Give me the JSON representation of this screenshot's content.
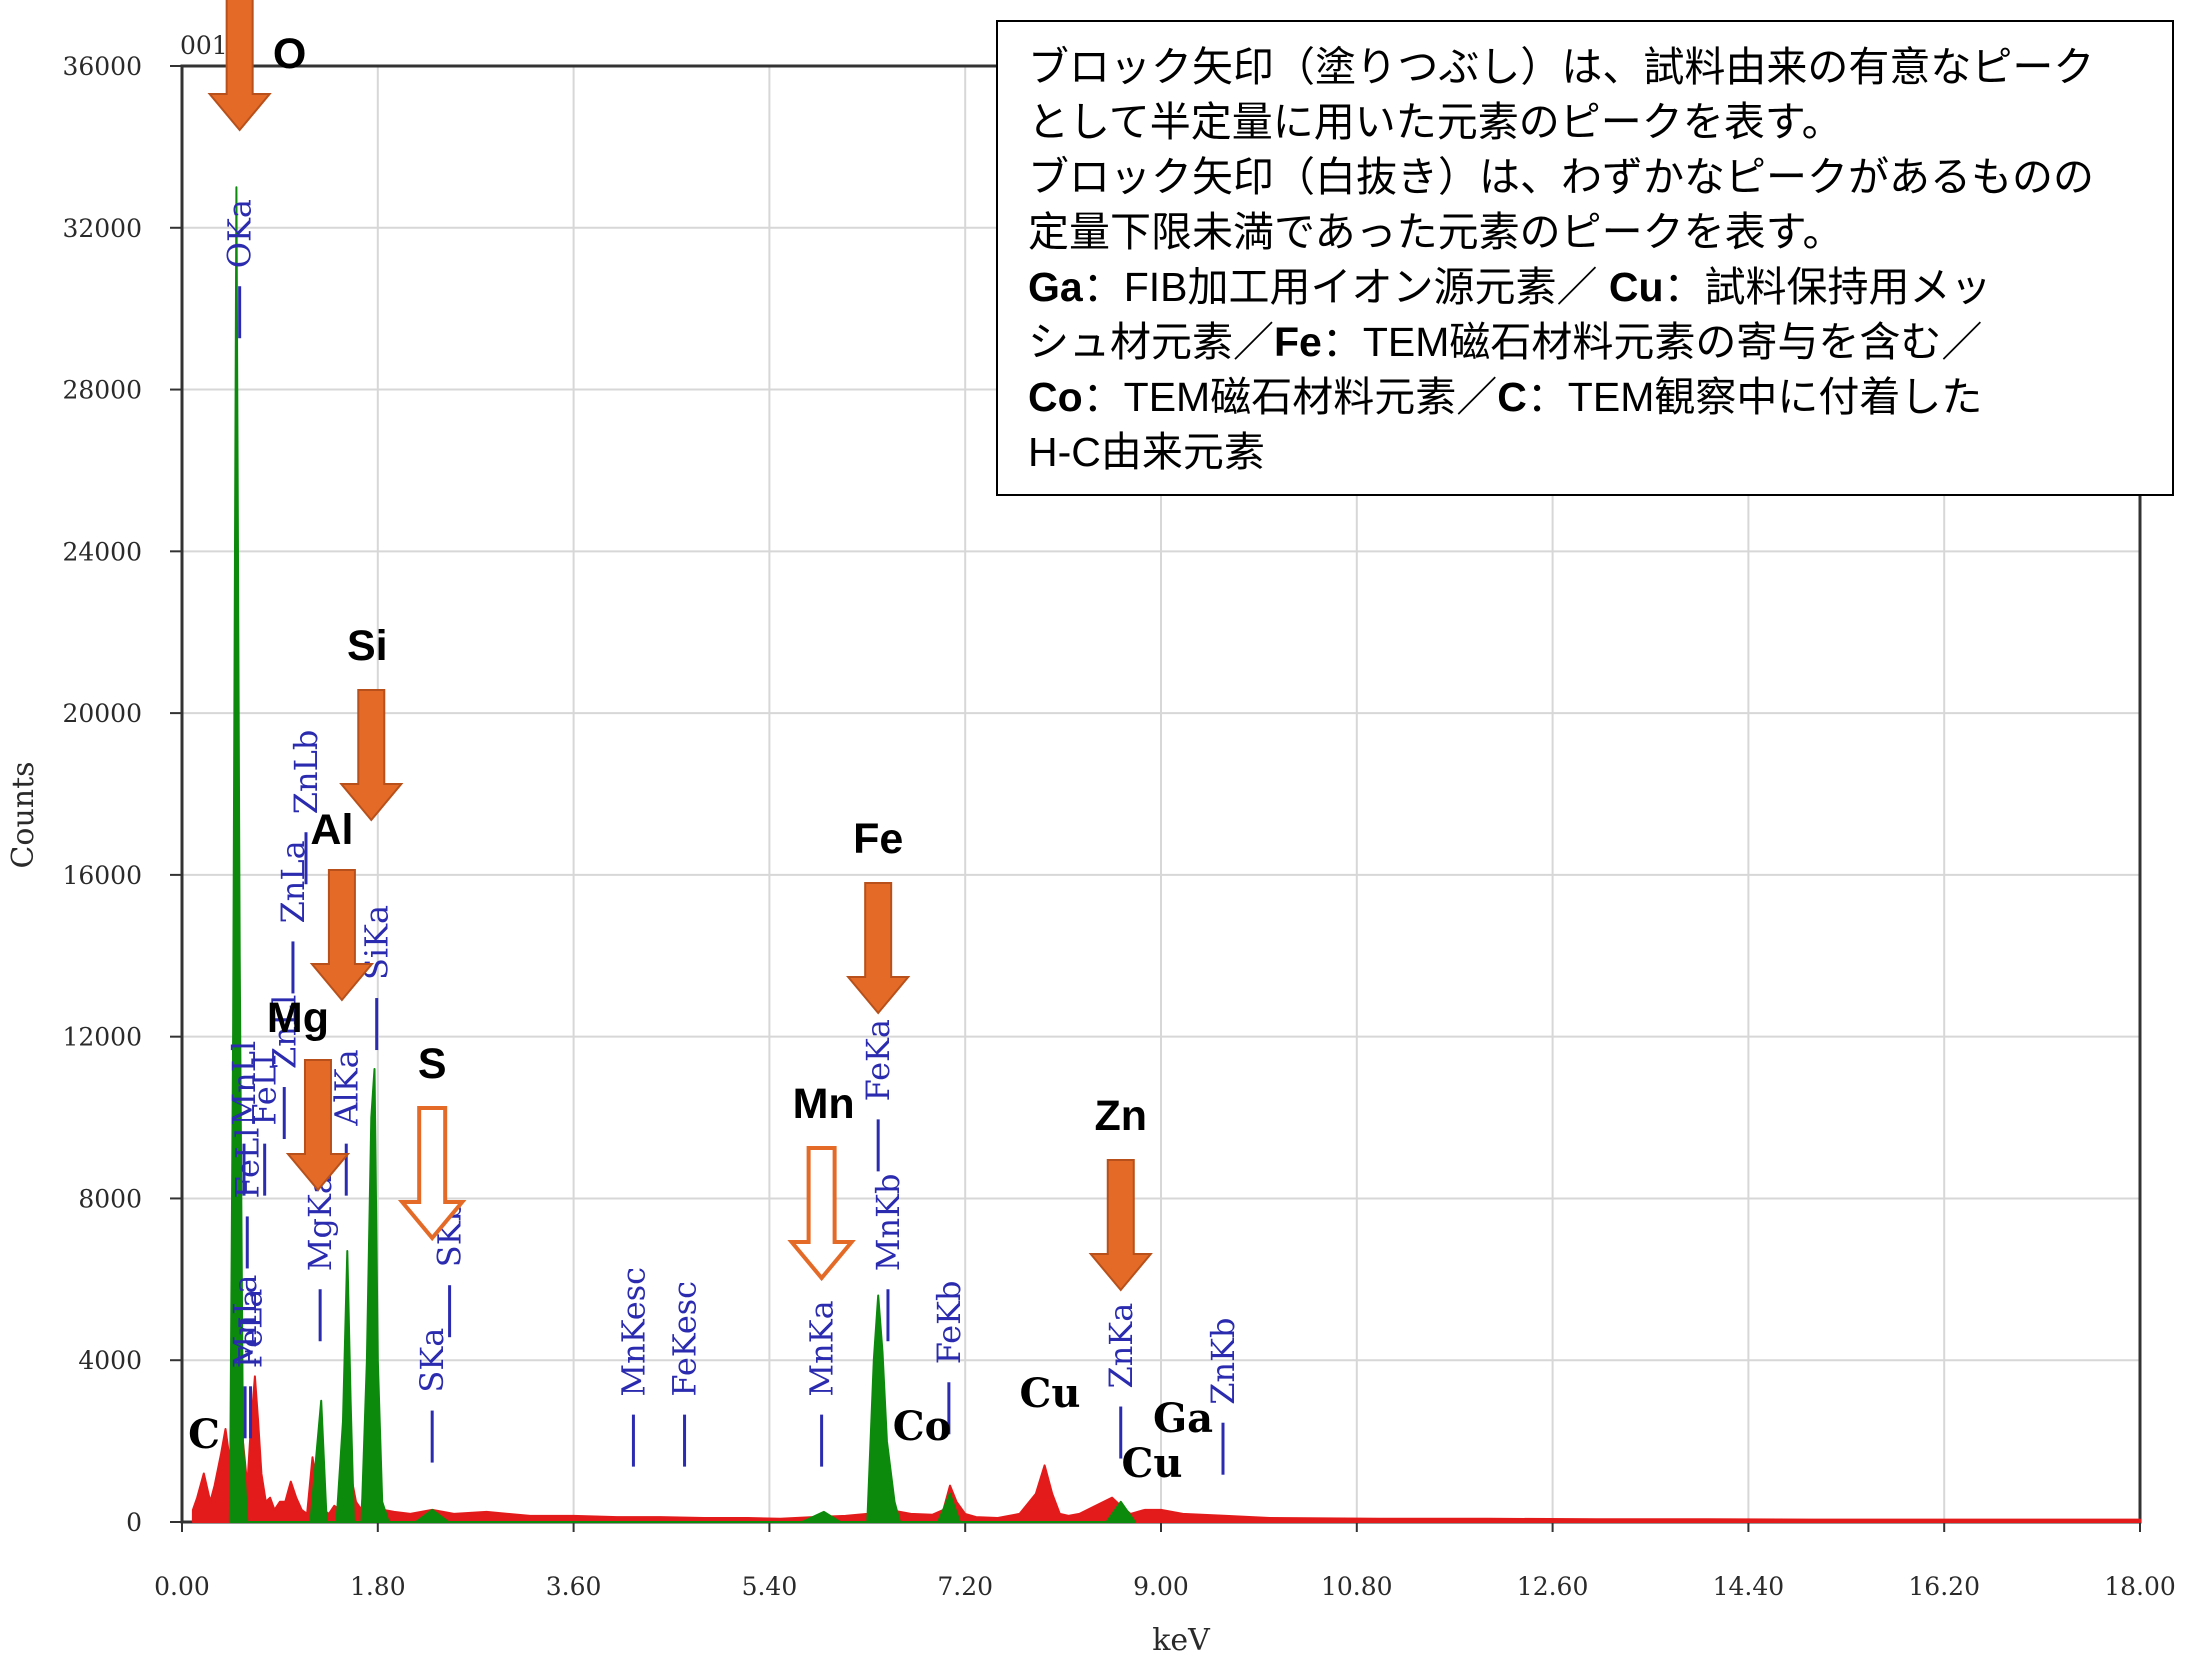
{
  "chart_data": {
    "type": "line",
    "xlabel": "keV",
    "ylabel": "Counts",
    "xlim": [
      0,
      18
    ],
    "ylim": [
      0,
      36000
    ],
    "x_ticks": [
      "0.00",
      "1.80",
      "3.60",
      "5.40",
      "7.20",
      "9.00",
      "10.80",
      "12.60",
      "14.40",
      "16.20",
      "18.00"
    ],
    "y_ticks": [
      "0",
      "4000",
      "8000",
      "12000",
      "16000",
      "20000",
      "24000",
      "28000",
      "32000",
      "36000"
    ],
    "spectrum_top_label": "001",
    "series": [
      {
        "color": "#e31b1b",
        "x": [
          0.1,
          0.14,
          0.2,
          0.26,
          0.3,
          0.36,
          0.4,
          0.44,
          0.47,
          0.5,
          0.53,
          0.56,
          0.6,
          0.63,
          0.67,
          0.7,
          0.73,
          0.77,
          0.81,
          0.85,
          0.9,
          0.95,
          1.0,
          1.05,
          1.1,
          1.15,
          1.2,
          1.25,
          1.3,
          1.35,
          1.4,
          1.45,
          1.5,
          1.55,
          1.6,
          1.65,
          1.7,
          1.75,
          1.8,
          1.85,
          1.95,
          2.1,
          2.3,
          2.5,
          2.8,
          3.2,
          3.6,
          4.0,
          4.4,
          4.8,
          5.2,
          5.5,
          5.8,
          6.1,
          6.3,
          6.5,
          6.7,
          6.9,
          7.0,
          7.06,
          7.12,
          7.2,
          7.3,
          7.5,
          7.7,
          7.85,
          7.93,
          8.0,
          8.07,
          8.15,
          8.25,
          8.4,
          8.55,
          8.63,
          8.72,
          8.85,
          9.0,
          9.2,
          9.6,
          10.0,
          11.0,
          12.0,
          13.0,
          14.0,
          15.0,
          16.0,
          17.0,
          18.0
        ],
        "y": [
          300,
          600,
          1200,
          500,
          900,
          1700,
          2300,
          1500,
          3200,
          5500,
          4000,
          2000,
          900,
          2200,
          3600,
          2500,
          1200,
          500,
          600,
          300,
          500,
          500,
          1000,
          600,
          300,
          200,
          1600,
          700,
          300,
          200,
          400,
          300,
          200,
          1200,
          500,
          300,
          1800,
          700,
          400,
          300,
          250,
          200,
          300,
          200,
          250,
          150,
          150,
          120,
          120,
          100,
          100,
          80,
          120,
          150,
          200,
          300,
          200,
          180,
          300,
          900,
          500,
          200,
          120,
          100,
          200,
          700,
          1400,
          700,
          200,
          150,
          200,
          400,
          600,
          400,
          200,
          300,
          300,
          200,
          150,
          100,
          80,
          80,
          70,
          70,
          60,
          60,
          60,
          60
        ]
      },
      {
        "color": "#0c8a0c",
        "x": [
          0.44,
          0.47,
          0.5,
          0.53,
          0.56,
          0.6,
          1.18,
          1.23,
          1.28,
          1.33,
          1.42,
          1.48,
          1.52,
          1.55,
          1.58,
          1.65,
          1.7,
          1.74,
          1.77,
          1.8,
          1.84,
          1.9,
          2.15,
          2.3,
          2.45,
          5.7,
          5.9,
          6.05,
          6.3,
          6.36,
          6.4,
          6.44,
          6.48,
          6.55,
          6.6,
          6.95,
          7.06,
          7.15,
          8.5,
          8.63,
          8.76
        ],
        "y": [
          0,
          12000,
          33000,
          14000,
          2000,
          0,
          0,
          1500,
          3000,
          0,
          0,
          2500,
          6700,
          3000,
          0,
          0,
          4000,
          10000,
          11200,
          4000,
          500,
          0,
          0,
          300,
          0,
          0,
          250,
          0,
          0,
          4000,
          5600,
          4200,
          2000,
          500,
          0,
          0,
          700,
          0,
          0,
          500,
          0
        ]
      }
    ],
    "peak_labels": [
      {
        "text": "OKa",
        "x": 0.53,
        "y": 31000
      },
      {
        "text": "MnLa",
        "x": 0.58,
        "y": 3800
      },
      {
        "text": "FeLa",
        "x": 0.63,
        "y": 3800
      },
      {
        "text": "FeLl",
        "x": 0.6,
        "y": 8000
      },
      {
        "text": "MnLl",
        "x": 0.57,
        "y": 9800
      },
      {
        "text": "FeLl",
        "x": 0.76,
        "y": 9800
      },
      {
        "text": "ZnLl",
        "x": 0.94,
        "y": 11200
      },
      {
        "text": "ZnLa",
        "x": 1.02,
        "y": 14800
      },
      {
        "text": "ZnLb",
        "x": 1.14,
        "y": 17500
      },
      {
        "text": "MgKa",
        "x": 1.27,
        "y": 6200
      },
      {
        "text": "AlKa",
        "x": 1.51,
        "y": 9800
      },
      {
        "text": "SiKa",
        "x": 1.79,
        "y": 13400
      },
      {
        "text": "SKa",
        "x": 2.3,
        "y": 3200
      },
      {
        "text": "SKb",
        "x": 2.46,
        "y": 6300
      },
      {
        "text": "MnKesc",
        "x": 4.15,
        "y": 3100
      },
      {
        "text": "FeKesc",
        "x": 4.62,
        "y": 3100
      },
      {
        "text": "MnKa",
        "x": 5.88,
        "y": 3100
      },
      {
        "text": "MnKb",
        "x": 6.49,
        "y": 6200
      },
      {
        "text": "FeKa",
        "x": 6.4,
        "y": 10400
      },
      {
        "text": "FeKb",
        "x": 7.05,
        "y": 3900
      },
      {
        "text": "ZnKa",
        "x": 8.63,
        "y": 3300
      },
      {
        "text": "ZnKb",
        "x": 9.57,
        "y": 2900
      }
    ],
    "element_arrows": [
      {
        "element": "O",
        "filled": true,
        "x": 0.53
      },
      {
        "element": "Si",
        "filled": true,
        "x": 1.74
      },
      {
        "element": "Al",
        "filled": true,
        "x": 1.47
      },
      {
        "element": "Mg",
        "filled": true,
        "x": 1.25
      },
      {
        "element": "S",
        "filled": false,
        "x": 2.3
      },
      {
        "element": "Mn",
        "filled": false,
        "x": 5.88
      },
      {
        "element": "Fe",
        "filled": true,
        "x": 6.4
      },
      {
        "element": "Zn",
        "filled": true,
        "x": 8.63
      }
    ],
    "spurious_labels": [
      "C",
      "Co",
      "Cu",
      "Ga",
      "Cu"
    ]
  },
  "colors": {
    "arrow_fill": "#e46a27",
    "arrow_stroke": "#b7501a",
    "spectrum_red": "#e31b1b",
    "spectrum_green": "#0c8a0c",
    "peak_label": "#2b2bb0",
    "grid": "#d7d7d7"
  },
  "note": {
    "line1": "ブロック矢印（塗りつぶし）は、試料由来の有意なピーク",
    "line2": "として半定量に用いた元素のピークを表す。",
    "line3": "ブロック矢印（白抜き）は、わずかなピークがあるものの",
    "line4": "定量下限未満であった元素のピークを表す。",
    "ga_bold": "Ga",
    "ga_text": "：FIB加工用イオン源元素／",
    "cu_bold": "Cu",
    "cu_text": "：試料保持用メッ",
    "line6_pre": "シュ材元素／",
    "fe_bold": "Fe",
    "fe_text": "：TEM磁石材料元素の寄与を含む／",
    "co_bold": "Co",
    "co_text": "：TEM磁石材料元素／",
    "c_bold": "C",
    "c_text": "：TEM観察中に付着した",
    "line8": "H-C由来元素"
  }
}
